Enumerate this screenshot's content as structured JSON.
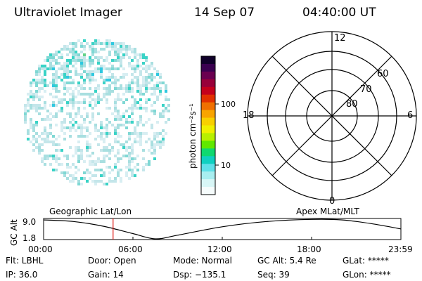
{
  "header": {
    "title": "Ultraviolet Imager",
    "date": "14 Sep 07",
    "time": "04:40:00 UT"
  },
  "colorbar": {
    "unit_label": "photon cm⁻²s⁻¹",
    "ticks": [
      "100",
      "10"
    ]
  },
  "polar_plot": {
    "latitude_labels": [
      "60",
      "70",
      "80"
    ],
    "mlt_labels": {
      "top": "12",
      "bottom": "0",
      "left": "18",
      "right": "6"
    }
  },
  "timeline": {
    "left_title": "Geographic Lat/Lon",
    "right_title": "Apex MLat/MLT",
    "y_axis_label": "GC Alt",
    "y_ticks": [
      "9.0",
      "1.8"
    ],
    "x_ticks": [
      "00:00",
      "06:00",
      "12:00",
      "18:00",
      "23:59"
    ],
    "marker_time": "04:40",
    "altitude_curve": {
      "units": "Re",
      "times_hours": [
        0,
        2,
        4,
        6,
        7.5,
        9,
        12,
        15,
        18,
        20,
        22,
        23.98
      ],
      "values": [
        9.0,
        8.4,
        6.6,
        3.8,
        1.8,
        3.2,
        6.4,
        8.4,
        9.2,
        9.0,
        7.6,
        5.6
      ]
    }
  },
  "info": {
    "filter": "Flt: LBHL",
    "door": "Door: Open",
    "mode": "Mode: Normal",
    "gc_alt": "GC Alt: 5.4 Re",
    "glat": "GLat: *****",
    "ip": "IP: 36.0",
    "gain": "Gain: 14",
    "dsp": "Dsp: −135.1",
    "seq": "Seq: 39",
    "glon": "GLon: *****"
  },
  "colors": {
    "marker": "#e0201b",
    "aurora_pixels": [
      "#d8eef2",
      "#c4e6ea",
      "#a8dfe0",
      "#7fd8d4",
      "#39d3c6",
      "#2fc8e0",
      "#64d38a"
    ]
  }
}
